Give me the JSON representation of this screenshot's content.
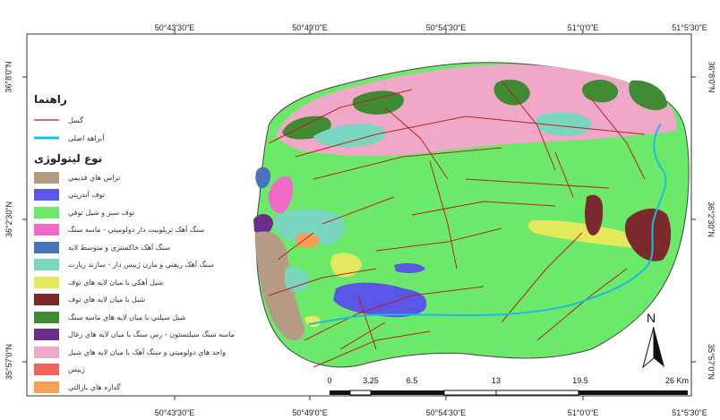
{
  "grid": {
    "top_labels": [
      "50°43'30\"E",
      "50°49'0\"E",
      "50°54'30\"E",
      "51°0'0\"E",
      "51°5'30\"E"
    ],
    "bottom_labels": [
      "50°43'30\"E",
      "50°49'0\"E",
      "50°54'30\"E",
      "51°0'0\"E",
      "51°5'30\"E"
    ],
    "left_labels": [
      "36°8'0\"N",
      "36°2'30\"N",
      "35°57'0\"N"
    ],
    "right_labels": [
      "36°8'0\"N",
      "36°2'30\"N",
      "35°57'0\"N"
    ]
  },
  "legend": {
    "title": "راهنما",
    "fault_label": "گسل",
    "river_label": "آبراهه اصلی",
    "lithology_title": "نوع لیتولوژی",
    "items": [
      {
        "label": "تراس هاي قديمي",
        "color": "#b59b84"
      },
      {
        "label": "توف آندزيتي",
        "color": "#5a56e6"
      },
      {
        "label": "توف سبز و شيل توفي",
        "color": "#6ce86a"
      },
      {
        "label": "سنگ آهک تريلوبيت دار دولوميتي - ماسه سنگ",
        "color": "#ef6cc6"
      },
      {
        "label": "سنگ آهک خاکستري و متوسط لايه",
        "color": "#4a73b8"
      },
      {
        "label": "سنگ آهک ريفتي و مارن ژيپس دار - سازند زيارت",
        "color": "#7ad6be"
      },
      {
        "label": "شيل آهکي با ميان لايه هاي توف",
        "color": "#e4e85c"
      },
      {
        "label": "شيل با ميان لايه هاي توف",
        "color": "#7a2a2a"
      },
      {
        "label": "شيل سيلتي با ميان لايه هاي ماسه سنگ",
        "color": "#3f8a32"
      },
      {
        "label": "ماسه سنگ سيلتستون - رس سنگ با ميان لايه هاي زغال",
        "color": "#6a2e8a"
      },
      {
        "label": "واحد هاي دولوميتي و سنگ آهک با ميان لايه هاي شيل",
        "color": "#f0a8c8"
      },
      {
        "label": "ژيپس",
        "color": "#f0625c"
      },
      {
        "label": "گدازه هاي بازالتي",
        "color": "#f5a05a"
      }
    ],
    "fault_color": "#b3261e",
    "river_color": "#22b8e0"
  },
  "scalebar": {
    "labels": [
      "0",
      "3.25",
      "6.5",
      "13",
      "19.5",
      "26 Km"
    ]
  },
  "north_arrow": {
    "label": "N"
  }
}
